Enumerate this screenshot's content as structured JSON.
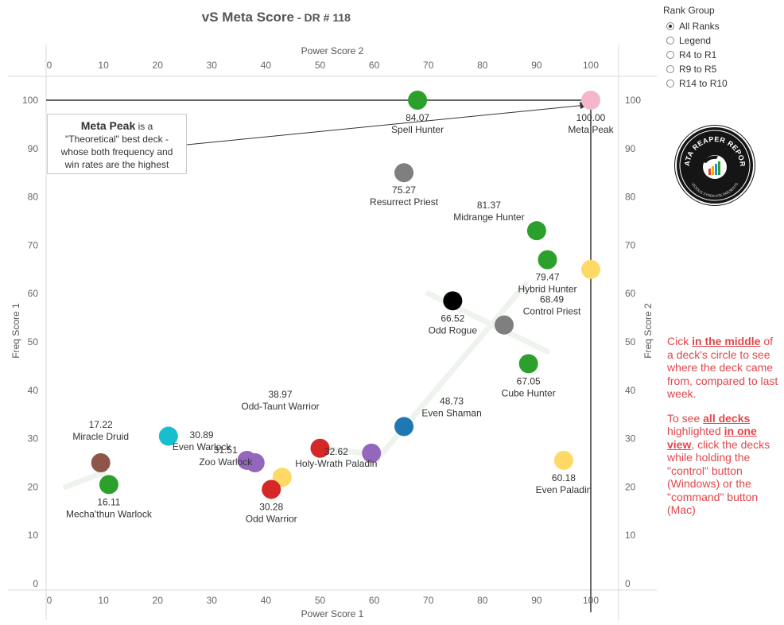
{
  "title": "vS Meta Score",
  "subtitle": "DR # 118",
  "filter": {
    "title": "Rank Group",
    "options": [
      "All Ranks",
      "Legend",
      "R4 to R1",
      "R9 to R5",
      "R14 to R10"
    ],
    "selected": "All Ranks"
  },
  "annotation": {
    "bold": "Meta Peak",
    "after_bold": " is a",
    "lines": [
      "\"Theoretical\" best deck -",
      "whose both frequency and",
      "win rates are the highest"
    ]
  },
  "logo": {
    "top_text": "DATA REAPER REPORT",
    "bottom_text": "VICIOUS SYNDICATE PRESENTS"
  },
  "instructions": {
    "p1": [
      "Cick ",
      {
        "emph": "in the middle"
      },
      " of a deck's circle to see where the deck came from, compared to last week."
    ],
    "p2": [
      "To see ",
      {
        "emph": "all decks "
      },
      " highlighted ",
      {
        "emph": "in one view"
      },
      ", click the decks while holding the \"control\" button (Windows) or the \"command\" button (Mac)"
    ]
  },
  "chart_data": {
    "type": "scatter",
    "xlabel": "Power Score 1",
    "x2label": "Power Score 2",
    "ylabel": "Freq Score 1",
    "y2label": "Freq Score 2",
    "xlim": [
      0,
      105
    ],
    "ylim": [
      -1,
      105
    ],
    "xticks": [
      0,
      10,
      20,
      30,
      40,
      50,
      60,
      70,
      80,
      90,
      100
    ],
    "yticks": [
      0,
      10,
      20,
      30,
      40,
      50,
      60,
      70,
      80,
      90,
      100
    ],
    "reference_lines": {
      "x": 100,
      "y": 100
    },
    "grid": false,
    "points": [
      {
        "x": 100,
        "y": 100,
        "score": "100.00",
        "name": "Meta Peak",
        "color": "#f4b6cd"
      },
      {
        "x": 68,
        "y": 100,
        "score": "84.07",
        "name": "Spell Hunter",
        "color": "#2ca02c"
      },
      {
        "x": 65.5,
        "y": 85,
        "score": "75.27",
        "name": "Resurrect Priest",
        "color": "#7f7f7f"
      },
      {
        "x": 90,
        "y": 73,
        "score": "81.37",
        "name": "Midrange Hunter",
        "color": "#2ca02c"
      },
      {
        "x": 92,
        "y": 67,
        "score": "79.47",
        "name": "Hybrid Hunter",
        "color": "#2ca02c"
      },
      {
        "x": 100,
        "y": 65,
        "score": "",
        "name": "",
        "color": "#ffd966"
      },
      {
        "x": 74.5,
        "y": 58.5,
        "score": "66.52",
        "name": "Odd Rogue",
        "color": "#000000"
      },
      {
        "x": 84,
        "y": 53.5,
        "score": "68.49",
        "name": "Control Priest",
        "color": "#7f7f7f"
      },
      {
        "x": 88.5,
        "y": 45.5,
        "score": "67.05",
        "name": "Cube Hunter",
        "color": "#2ca02c"
      },
      {
        "x": 65.5,
        "y": 32.5,
        "score": "48.73",
        "name": "Even Shaman",
        "color": "#1f77b4"
      },
      {
        "x": 95,
        "y": 25.5,
        "score": "60.18",
        "name": "Even Paladin",
        "color": "#ffd966"
      },
      {
        "x": 59.5,
        "y": 27,
        "score": "",
        "name": "",
        "color": "#9467bd"
      },
      {
        "x": 50,
        "y": 28,
        "score": "38.97",
        "name": "Odd-Taunt Warrior",
        "color": "#d62728"
      },
      {
        "x": 43,
        "y": 22,
        "score": "32.62",
        "name": "Holy-Wrath Paladin",
        "color": "#ffd966"
      },
      {
        "x": 36.5,
        "y": 25.5,
        "score": "30.89",
        "name": "Even Warlock",
        "color": "#9467bd"
      },
      {
        "x": 38,
        "y": 25,
        "score": "31.51",
        "name": "Zoo Warlock",
        "color": "#9467bd"
      },
      {
        "x": 41,
        "y": 19.5,
        "score": "30.28",
        "name": "Odd Warrior",
        "color": "#d62728"
      },
      {
        "x": 22,
        "y": 30.5,
        "score": "",
        "name": "",
        "color": "#17becf"
      },
      {
        "x": 9.5,
        "y": 25,
        "score": "17.22",
        "name": "Miracle Druid",
        "color": "#8c564b"
      },
      {
        "x": 11,
        "y": 20.5,
        "score": "16.11",
        "name": "Mecha'thun Warlock",
        "color": "#2ca02c"
      }
    ]
  }
}
